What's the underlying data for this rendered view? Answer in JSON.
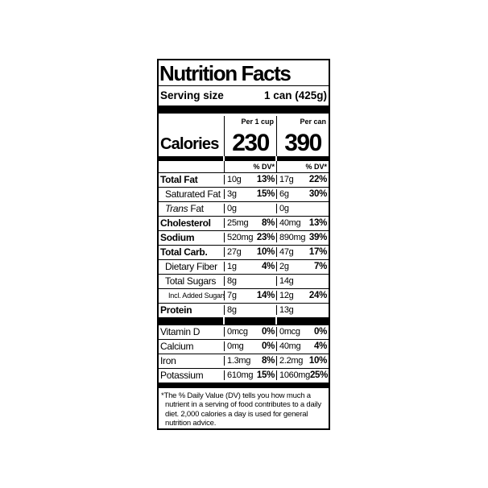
{
  "label": {
    "title": "Nutrition Facts",
    "serving": {
      "label": "Serving size",
      "value": "1 can (425g)"
    },
    "columns": {
      "per_cup_header": "Per 1 cup",
      "per_can_header": "Per can"
    },
    "calories": {
      "label": "Calories",
      "per_cup": "230",
      "per_can": "390"
    },
    "dv_header": "% DV*",
    "main_rows": [
      {
        "name": "Total Fat",
        "style": "b",
        "cup_amt": "10g",
        "cup_dv": "13%",
        "can_amt": "17g",
        "can_dv": "22%"
      },
      {
        "name": "Saturated Fat",
        "style": "i1",
        "cup_amt": "3g",
        "cup_dv": "15%",
        "can_amt": "6g",
        "can_dv": "30%"
      },
      {
        "name": "Trans Fat",
        "style": "i1 italic-prefix",
        "cup_amt": "0g",
        "cup_dv": "",
        "can_amt": "0g",
        "can_dv": ""
      },
      {
        "name": "Cholesterol",
        "style": "b",
        "cup_amt": "25mg",
        "cup_dv": "8%",
        "can_amt": "40mg",
        "can_dv": "13%"
      },
      {
        "name": "Sodium",
        "style": "b",
        "cup_amt": "520mg",
        "cup_dv": "23%",
        "can_amt": "890mg",
        "can_dv": "39%"
      },
      {
        "name": "Total Carb.",
        "style": "b",
        "cup_amt": "27g",
        "cup_dv": "10%",
        "can_amt": "47g",
        "can_dv": "17%"
      },
      {
        "name": "Dietary Fiber",
        "style": "i1",
        "cup_amt": "1g",
        "cup_dv": "4%",
        "can_amt": "2g",
        "can_dv": "7%"
      },
      {
        "name": "Total Sugars",
        "style": "i1",
        "cup_amt": "8g",
        "cup_dv": "",
        "can_amt": "14g",
        "can_dv": ""
      },
      {
        "name": "Incl. Added Sugars",
        "style": "i2",
        "cup_amt": "7g",
        "cup_dv": "14%",
        "can_amt": "12g",
        "can_dv": "24%"
      },
      {
        "name": "Protein",
        "style": "b",
        "cup_amt": "8g",
        "cup_dv": "",
        "can_amt": "13g",
        "can_dv": ""
      }
    ],
    "micro_rows": [
      {
        "name": "Vitamin D",
        "style": "",
        "cup_amt": "0mcg",
        "cup_dv": "0%",
        "can_amt": "0mcg",
        "can_dv": "0%"
      },
      {
        "name": "Calcium",
        "style": "",
        "cup_amt": "0mg",
        "cup_dv": "0%",
        "can_amt": "40mg",
        "can_dv": "4%"
      },
      {
        "name": "Iron",
        "style": "",
        "cup_amt": "1.3mg",
        "cup_dv": "8%",
        "can_amt": "2.2mg",
        "can_dv": "10%"
      },
      {
        "name": "Potassium",
        "style": "",
        "cup_amt": "610mg",
        "cup_dv": "15%",
        "can_amt": "1060mg",
        "can_dv": "25%"
      }
    ],
    "footnote": "*The % Daily Value (DV) tells you how much a nutrient in a serving of food contributes to a daily diet. 2,000 calories a day is used for general nutrition advice.",
    "colors": {
      "ink": "#000000",
      "paper": "#ffffff"
    }
  }
}
